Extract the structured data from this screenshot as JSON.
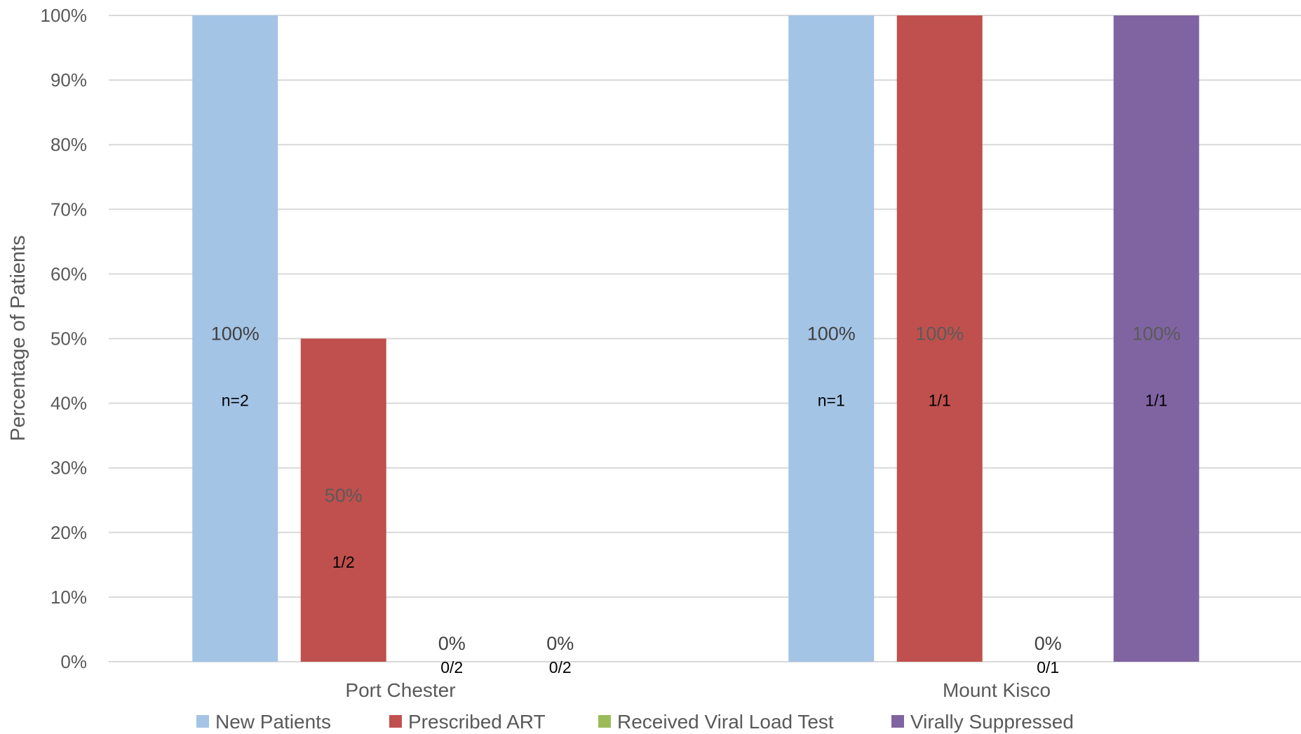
{
  "chart_data": {
    "type": "bar",
    "title": "",
    "xlabel": "",
    "ylabel": "Percentage of Patients",
    "ylim": [
      0,
      100
    ],
    "yticks": [
      "0%",
      "10%",
      "20%",
      "30%",
      "40%",
      "50%",
      "60%",
      "70%",
      "80%",
      "90%",
      "100%"
    ],
    "categories": [
      "Port Chester",
      "Mount Kisco"
    ],
    "legend_position": "bottom",
    "grid": true,
    "series": [
      {
        "name": "New Patients",
        "color": "#a4c4e6",
        "values": [
          100,
          100
        ],
        "labels": [
          "100%",
          "100%"
        ],
        "counts": [
          "n=2",
          "n=1"
        ]
      },
      {
        "name": "Prescribed ART",
        "color": "#c0504d",
        "values": [
          50,
          100
        ],
        "labels": [
          "50%",
          "100%"
        ],
        "counts": [
          "1/2",
          "1/1"
        ]
      },
      {
        "name": "Received Viral Load Test",
        "color": "#9bbb59",
        "values": [
          0,
          0
        ],
        "labels": [
          "0%",
          "0%"
        ],
        "counts": [
          "0/2",
          "0/1"
        ]
      },
      {
        "name": "Virally Suppressed",
        "color": "#8064a2",
        "values": [
          0,
          100
        ],
        "labels": [
          "0%",
          "100%"
        ],
        "counts": [
          "0/2",
          "1/1"
        ]
      }
    ]
  }
}
